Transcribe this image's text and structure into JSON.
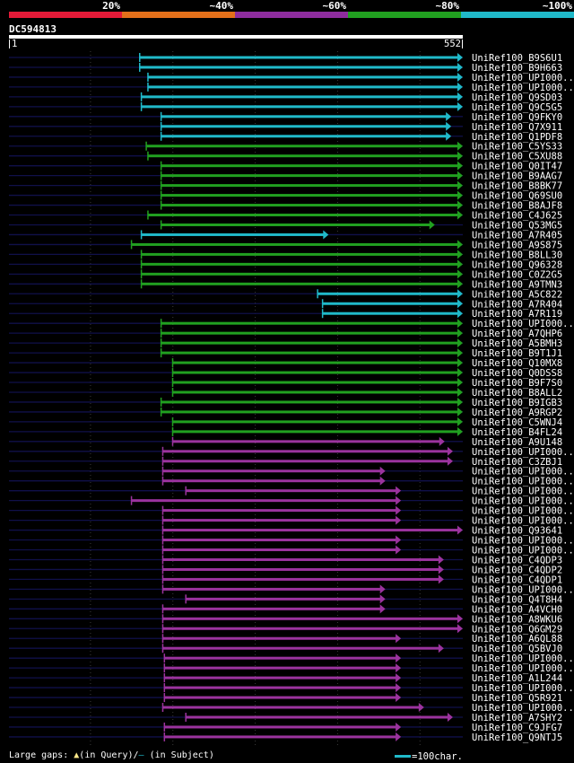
{
  "chart_data": {
    "type": "alignment-overview",
    "query_id": "DC594813",
    "query_range": [
      1,
      552
    ],
    "query_start_label": "1",
    "query_end_label": "552",
    "identity_legend": [
      {
        "label": "20%",
        "color": "#e41a38"
      },
      {
        "label": "~40%",
        "color": "#e3701a"
      },
      {
        "label": "~60%",
        "color": "#8e2d9e"
      },
      {
        "label": "~80%",
        "color": "#21a020"
      },
      {
        "label": "~100%",
        "color": "#20b9c9"
      }
    ],
    "hits": [
      {
        "name": "UniRef100_B9S6U1",
        "start": 160,
        "end": 552,
        "group": "c"
      },
      {
        "name": "UniRef100_B9H663",
        "start": 160,
        "end": 552,
        "group": "c"
      },
      {
        "name": "UniRef100_UPI000..",
        "start": 170,
        "end": 552,
        "group": "c"
      },
      {
        "name": "UniRef100_UPI000..",
        "start": 170,
        "end": 552,
        "group": "c"
      },
      {
        "name": "UniRef100_Q9SD03",
        "start": 162,
        "end": 552,
        "group": "c"
      },
      {
        "name": "UniRef100_Q9C5G5",
        "start": 162,
        "end": 552,
        "group": "c"
      },
      {
        "name": "UniRef100_Q9FKY0",
        "start": 186,
        "end": 538,
        "group": "c"
      },
      {
        "name": "UniRef100_Q7X911",
        "start": 186,
        "end": 538,
        "group": "c"
      },
      {
        "name": "UniRef100_Q1PDF8",
        "start": 186,
        "end": 538,
        "group": "c"
      },
      {
        "name": "UniRef100_C5YS33",
        "start": 168,
        "end": 552,
        "group": "g"
      },
      {
        "name": "UniRef100_C5XU88",
        "start": 170,
        "end": 552,
        "group": "g"
      },
      {
        "name": "UniRef100_Q0IT47",
        "start": 186,
        "end": 552,
        "group": "g"
      },
      {
        "name": "UniRef100_B9AAG7",
        "start": 186,
        "end": 552,
        "group": "g"
      },
      {
        "name": "UniRef100_B8BK77",
        "start": 186,
        "end": 552,
        "group": "g"
      },
      {
        "name": "UniRef100_Q69SU0",
        "start": 186,
        "end": 552,
        "group": "g"
      },
      {
        "name": "UniRef100_B8AJF8",
        "start": 186,
        "end": 552,
        "group": "g"
      },
      {
        "name": "UniRef100_C4J625",
        "start": 170,
        "end": 552,
        "group": "g"
      },
      {
        "name": "UniRef100_Q53MG5",
        "start": 186,
        "end": 518,
        "group": "g"
      },
      {
        "name": "UniRef100_A7R405",
        "start": 162,
        "end": 389,
        "group": "c"
      },
      {
        "name": "UniRef100_A9S875",
        "start": 150,
        "end": 552,
        "group": "g"
      },
      {
        "name": "UniRef100_B8LL30",
        "start": 162,
        "end": 552,
        "group": "g"
      },
      {
        "name": "UniRef100_Q96328",
        "start": 162,
        "end": 552,
        "group": "g"
      },
      {
        "name": "UniRef100_C0Z2G5",
        "start": 162,
        "end": 552,
        "group": "g"
      },
      {
        "name": "UniRef100_A9TMN3",
        "start": 162,
        "end": 552,
        "group": "g"
      },
      {
        "name": "UniRef100_A5C822",
        "start": 376,
        "end": 552,
        "group": "c"
      },
      {
        "name": "UniRef100_A7R404",
        "start": 382,
        "end": 552,
        "group": "c"
      },
      {
        "name": "UniRef100_A7R119",
        "start": 382,
        "end": 552,
        "group": "c"
      },
      {
        "name": "UniRef100_UPI000..",
        "start": 186,
        "end": 552,
        "group": "g"
      },
      {
        "name": "UniRef100_A7QHP6",
        "start": 186,
        "end": 552,
        "group": "g"
      },
      {
        "name": "UniRef100_A5BMH3",
        "start": 186,
        "end": 552,
        "group": "g"
      },
      {
        "name": "UniRef100_B9T1J1",
        "start": 186,
        "end": 552,
        "group": "g"
      },
      {
        "name": "UniRef100_Q10MX8",
        "start": 200,
        "end": 552,
        "group": "g"
      },
      {
        "name": "UniRef100_Q0DSS8",
        "start": 200,
        "end": 552,
        "group": "g"
      },
      {
        "name": "UniRef100_B9F7S0",
        "start": 200,
        "end": 552,
        "group": "g"
      },
      {
        "name": "UniRef100_B8ALL2",
        "start": 200,
        "end": 552,
        "group": "g"
      },
      {
        "name": "UniRef100_B9IGB3",
        "start": 186,
        "end": 552,
        "group": "g"
      },
      {
        "name": "UniRef100_A9RGP2",
        "start": 186,
        "end": 552,
        "group": "g"
      },
      {
        "name": "UniRef100_C5WNJ4",
        "start": 200,
        "end": 552,
        "group": "g"
      },
      {
        "name": "UniRef100_B4FL24",
        "start": 200,
        "end": 552,
        "group": "g"
      },
      {
        "name": "UniRef100_A9U148",
        "start": 200,
        "end": 530,
        "group": "p"
      },
      {
        "name": "UniRef100_UPI000..",
        "start": 188,
        "end": 540,
        "group": "p"
      },
      {
        "name": "UniRef100_C3ZBJ1",
        "start": 188,
        "end": 540,
        "group": "p"
      },
      {
        "name": "UniRef100_UPI000..",
        "start": 188,
        "end": 458,
        "group": "p"
      },
      {
        "name": "UniRef100_UPI000..",
        "start": 188,
        "end": 458,
        "group": "p"
      },
      {
        "name": "UniRef100_UPI000..",
        "start": 216,
        "end": 477,
        "group": "p"
      },
      {
        "name": "UniRef100_UPI000..",
        "start": 150,
        "end": 477,
        "group": "p"
      },
      {
        "name": "UniRef100_UPI000..",
        "start": 188,
        "end": 477,
        "group": "p"
      },
      {
        "name": "UniRef100_UPI000..",
        "start": 188,
        "end": 477,
        "group": "p"
      },
      {
        "name": "UniRef100_Q93641",
        "start": 188,
        "end": 552,
        "group": "p"
      },
      {
        "name": "UniRef100_UPI000..",
        "start": 188,
        "end": 477,
        "group": "p"
      },
      {
        "name": "UniRef100_UPI000..",
        "start": 188,
        "end": 477,
        "group": "p"
      },
      {
        "name": "UniRef100_C4QDP3",
        "start": 188,
        "end": 529,
        "group": "p"
      },
      {
        "name": "UniRef100_C4QDP2",
        "start": 188,
        "end": 529,
        "group": "p"
      },
      {
        "name": "UniRef100_C4QDP1",
        "start": 188,
        "end": 529,
        "group": "p"
      },
      {
        "name": "UniRef100_UPI000..",
        "start": 188,
        "end": 458,
        "group": "p"
      },
      {
        "name": "UniRef100_Q4T8H4",
        "start": 216,
        "end": 458,
        "group": "p"
      },
      {
        "name": "UniRef100_A4VCH0",
        "start": 188,
        "end": 458,
        "group": "p"
      },
      {
        "name": "UniRef100_A8WKU6",
        "start": 188,
        "end": 552,
        "group": "p"
      },
      {
        "name": "UniRef100_Q6GM29",
        "start": 188,
        "end": 552,
        "group": "p"
      },
      {
        "name": "UniRef100_A6QL88",
        "start": 188,
        "end": 477,
        "group": "p"
      },
      {
        "name": "UniRef100_Q5BVJ0",
        "start": 188,
        "end": 529,
        "group": "p"
      },
      {
        "name": "UniRef100_UPI000..",
        "start": 190,
        "end": 477,
        "group": "p"
      },
      {
        "name": "UniRef100_UPI000..",
        "start": 190,
        "end": 477,
        "group": "p"
      },
      {
        "name": "UniRef100_A1L244",
        "start": 190,
        "end": 477,
        "group": "p"
      },
      {
        "name": "UniRef100_UPI000..",
        "start": 190,
        "end": 477,
        "group": "p"
      },
      {
        "name": "UniRef100_Q5R921",
        "start": 190,
        "end": 477,
        "group": "p"
      },
      {
        "name": "UniRef100_UPI000..",
        "start": 188,
        "end": 505,
        "group": "p"
      },
      {
        "name": "UniRef100_A7SHY2",
        "start": 216,
        "end": 540,
        "group": "p"
      },
      {
        "name": "UniRef100_C9JFG7",
        "start": 190,
        "end": 477,
        "group": "p"
      },
      {
        "name": "UniRef100_Q9NTJ5",
        "start": 190,
        "end": 477,
        "group": "p"
      }
    ],
    "gap_note": {
      "prefix": "Large gaps:",
      "query_mark": "(in Query)/",
      "subject_mark": "(in Subject)",
      "scale_label": "=100char."
    }
  },
  "colors": {
    "background": "#000000",
    "c": "#20b9c9",
    "g": "#21a020",
    "p": "#9b339e",
    "track": "#10104a",
    "gridline": "#3a3a3a"
  }
}
